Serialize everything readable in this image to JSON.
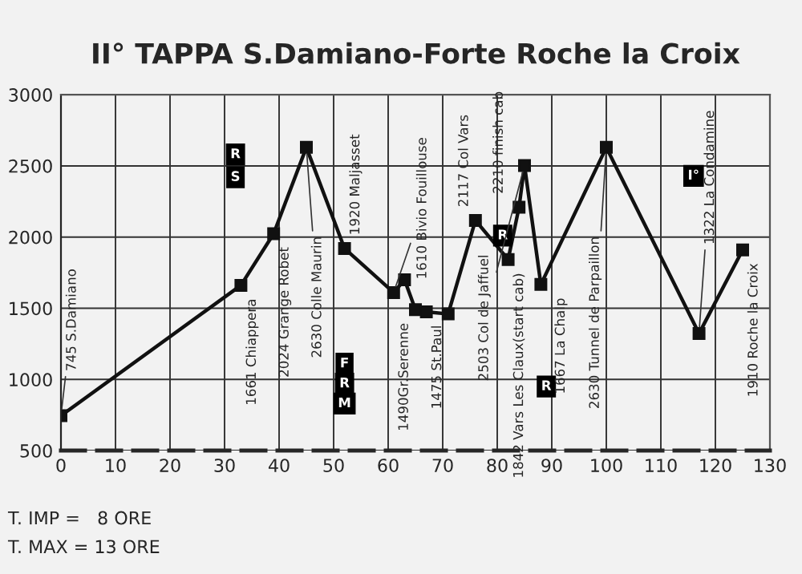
{
  "chart_data": {
    "type": "line",
    "title": "II° TAPPA S.Damiano-Forte Roche la Croix",
    "series": [
      {
        "color": "#111111",
        "x": [
          0,
          33,
          39,
          45,
          52,
          61,
          63,
          65,
          67,
          71,
          76,
          82,
          84,
          85,
          88,
          100,
          117,
          125
        ],
        "values": [
          745,
          1661,
          2024,
          2630,
          1920,
          1610,
          1700,
          1490,
          1475,
          1460,
          2117,
          1842,
          2210,
          2503,
          1667,
          2630,
          1322,
          1910
        ]
      }
    ],
    "xlim": [
      0,
      130
    ],
    "xticks": [
      0,
      10,
      20,
      30,
      40,
      50,
      60,
      70,
      80,
      90,
      100,
      110,
      120,
      130
    ],
    "ylim": [
      500,
      3000
    ],
    "yticks": [
      500,
      1000,
      1500,
      2000,
      2500,
      3000
    ],
    "grid": true,
    "marker": "square",
    "line_style": "solid",
    "annotations": [
      {
        "text": "745 S.Damiano",
        "x": 0,
        "y": 745
      },
      {
        "text": "1661 Chiappera",
        "x": 33,
        "y": 1661
      },
      {
        "text": "2024 Grange Robet",
        "x": 39,
        "y": 2024
      },
      {
        "text": "2630 Colle Maurin",
        "x": 45,
        "y": 2630
      },
      {
        "text": "1920 Maljasset",
        "x": 52,
        "y": 1920
      },
      {
        "text": "1610 Bivio Fouillouse",
        "x": 61,
        "y": 1610
      },
      {
        "text": "1490Gr.Serenne",
        "x": 65,
        "y": 1490
      },
      {
        "text": "1475 St.Paul",
        "x": 67,
        "y": 1475
      },
      {
        "text": "2117 Col Vars",
        "x": 76,
        "y": 2117
      },
      {
        "text": "1842 Vars Les Claux(start cab)",
        "x": 82,
        "y": 1842
      },
      {
        "text": "2210 finish cab",
        "x": 84,
        "y": 2210
      },
      {
        "text": "2503 Col de Jaffuel",
        "x": 85,
        "y": 2503
      },
      {
        "text": "1667 La Chalp",
        "x": 88,
        "y": 1667
      },
      {
        "text": "2630 Tunnel de Parpaillon",
        "x": 100,
        "y": 2630
      },
      {
        "text": "1322 La Condamine",
        "x": 117,
        "y": 1322
      },
      {
        "text": "1910 Roche la Croix",
        "x": 125,
        "y": 1910
      },
      {
        "text": "R",
        "x": 32,
        "y": 2580
      },
      {
        "text": "S",
        "x": 32,
        "y": 2420
      },
      {
        "text": "F",
        "x": 52,
        "y": 1110
      },
      {
        "text": "R",
        "x": 52,
        "y": 970
      },
      {
        "text": "M",
        "x": 52,
        "y": 830
      },
      {
        "text": "R",
        "x": 81,
        "y": 2010
      },
      {
        "text": "R",
        "x": 89,
        "y": 950
      },
      {
        "text": "I°",
        "x": 116,
        "y": 2430
      },
      "T. IMP =   8 ORE",
      "T. MAX = 13 ORE"
    ]
  }
}
